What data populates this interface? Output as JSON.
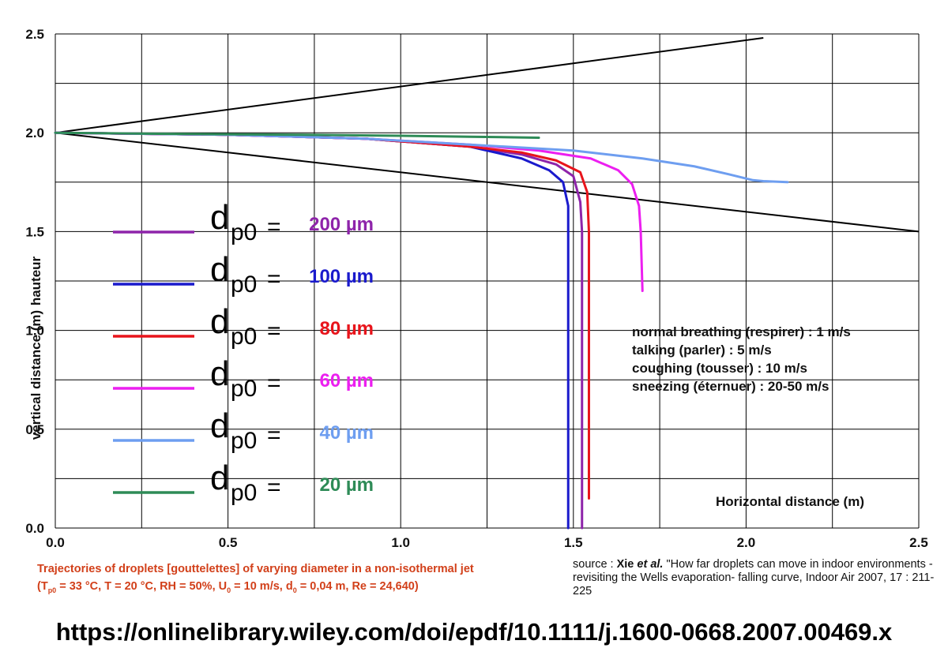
{
  "chart_data": {
    "type": "line",
    "ylabel": "vertical distance (m)",
    "ylabel_secondary": "hauteur",
    "xlabel": "Horizontal distance (m)",
    "xlim": [
      0,
      2.5
    ],
    "ylim": [
      0,
      2.5
    ],
    "x_ticks": [
      "0.0",
      "0.5",
      "1.0",
      "1.5",
      "2.0",
      "2.5"
    ],
    "y_ticks": [
      "0.0",
      "0.5",
      "1.0",
      "1.5",
      "2.0",
      "2.5"
    ],
    "grid": true,
    "jet_boundaries": [
      {
        "name": "upper",
        "points": [
          [
            0,
            2.0
          ],
          [
            2.05,
            2.48
          ]
        ],
        "color": "#000000"
      },
      {
        "name": "lower",
        "points": [
          [
            0,
            2.0
          ],
          [
            2.5,
            1.5
          ]
        ],
        "color": "#000000"
      }
    ],
    "series": [
      {
        "name": "200 µm",
        "color": "#8e24aa",
        "legend_symbol": "d",
        "legend_sub": "p0",
        "legend_value": "200 µm",
        "points": [
          [
            0,
            2.0
          ],
          [
            0.5,
            1.99
          ],
          [
            0.9,
            1.97
          ],
          [
            1.2,
            1.93
          ],
          [
            1.35,
            1.89
          ],
          [
            1.45,
            1.84
          ],
          [
            1.5,
            1.78
          ],
          [
            1.52,
            1.65
          ],
          [
            1.525,
            1.5
          ],
          [
            1.525,
            1.2
          ],
          [
            1.525,
            0.5
          ],
          [
            1.525,
            0
          ]
        ]
      },
      {
        "name": "100 µm",
        "color": "#1a1acc",
        "legend_symbol": "d",
        "legend_sub": "p0",
        "legend_value": "100 µm",
        "points": [
          [
            0,
            2.0
          ],
          [
            0.5,
            1.99
          ],
          [
            0.9,
            1.97
          ],
          [
            1.2,
            1.93
          ],
          [
            1.35,
            1.87
          ],
          [
            1.43,
            1.81
          ],
          [
            1.47,
            1.75
          ],
          [
            1.485,
            1.63
          ],
          [
            1.485,
            1.5
          ],
          [
            1.485,
            1.0
          ],
          [
            1.485,
            0
          ]
        ]
      },
      {
        "name": "80 µm",
        "color": "#e8141b",
        "legend_symbol": "d",
        "legend_sub": "p0",
        "legend_value": "80 µm",
        "points": [
          [
            0,
            2.0
          ],
          [
            0.5,
            1.99
          ],
          [
            0.9,
            1.97
          ],
          [
            1.2,
            1.93
          ],
          [
            1.35,
            1.9
          ],
          [
            1.45,
            1.86
          ],
          [
            1.52,
            1.8
          ],
          [
            1.54,
            1.7
          ],
          [
            1.545,
            1.5
          ],
          [
            1.545,
            1.0
          ],
          [
            1.545,
            0.15
          ]
        ]
      },
      {
        "name": "60 µm",
        "color": "#ec1ff0",
        "legend_symbol": "d",
        "legend_sub": "p0",
        "legend_value": "60 µm",
        "points": [
          [
            0,
            2.0
          ],
          [
            0.5,
            1.99
          ],
          [
            0.9,
            1.97
          ],
          [
            1.2,
            1.94
          ],
          [
            1.4,
            1.91
          ],
          [
            1.55,
            1.87
          ],
          [
            1.63,
            1.81
          ],
          [
            1.67,
            1.74
          ],
          [
            1.69,
            1.63
          ],
          [
            1.695,
            1.5
          ],
          [
            1.7,
            1.2
          ]
        ]
      },
      {
        "name": "40 µm",
        "color": "#6e9ef0",
        "legend_symbol": "d",
        "legend_sub": "p0",
        "legend_value": "40 µm",
        "points": [
          [
            0,
            2.0
          ],
          [
            0.5,
            1.99
          ],
          [
            0.9,
            1.97
          ],
          [
            1.2,
            1.94
          ],
          [
            1.5,
            1.91
          ],
          [
            1.7,
            1.87
          ],
          [
            1.85,
            1.83
          ],
          [
            1.95,
            1.79
          ],
          [
            2.02,
            1.76
          ],
          [
            2.05,
            1.755
          ],
          [
            2.12,
            1.75
          ]
        ]
      },
      {
        "name": "20 µm",
        "color": "#2e8b57",
        "legend_symbol": "d",
        "legend_sub": "p0",
        "legend_value": "20 µm",
        "points": [
          [
            0,
            2.0
          ],
          [
            0.3,
            1.995
          ],
          [
            0.7,
            1.99
          ],
          [
            1.0,
            1.985
          ],
          [
            1.2,
            1.98
          ],
          [
            1.4,
            1.975
          ]
        ]
      }
    ],
    "annotations": [
      "normal breathing (respirer) : 1 m/s",
      "talking (parler) : 5 m/s",
      "coughing (tousser) : 10 m/s",
      "sneezing (éternuer) : 20-50 m/s"
    ]
  },
  "caption": {
    "line1": "Trajectories of droplets [gouttelettes] of varying diameter in a non-isothermal jet",
    "line2_prefix": "(T",
    "line2_sub1": "p0",
    "line2_mid1": " = 33 °C, T   = 20 °C, RH = 50%, U",
    "line2_sub2": "0",
    "line2_mid2": " = 10 m/s, d",
    "line2_sub3": "0",
    "line2_suffix": " = 0,04 m, Re = 24,640)"
  },
  "source": {
    "prefix": "source : ",
    "authors": "Xie",
    "etal": "et al.",
    "text": " \"How far droplets can move in indoor environments -revisiting the Wells evaporation- falling curve, Indoor Air 2007, 17 : 211-225"
  },
  "url": "https://onlinelibrary.wiley.com/doi/epdf/10.1111/j.1600-0668.2007.00469.x"
}
